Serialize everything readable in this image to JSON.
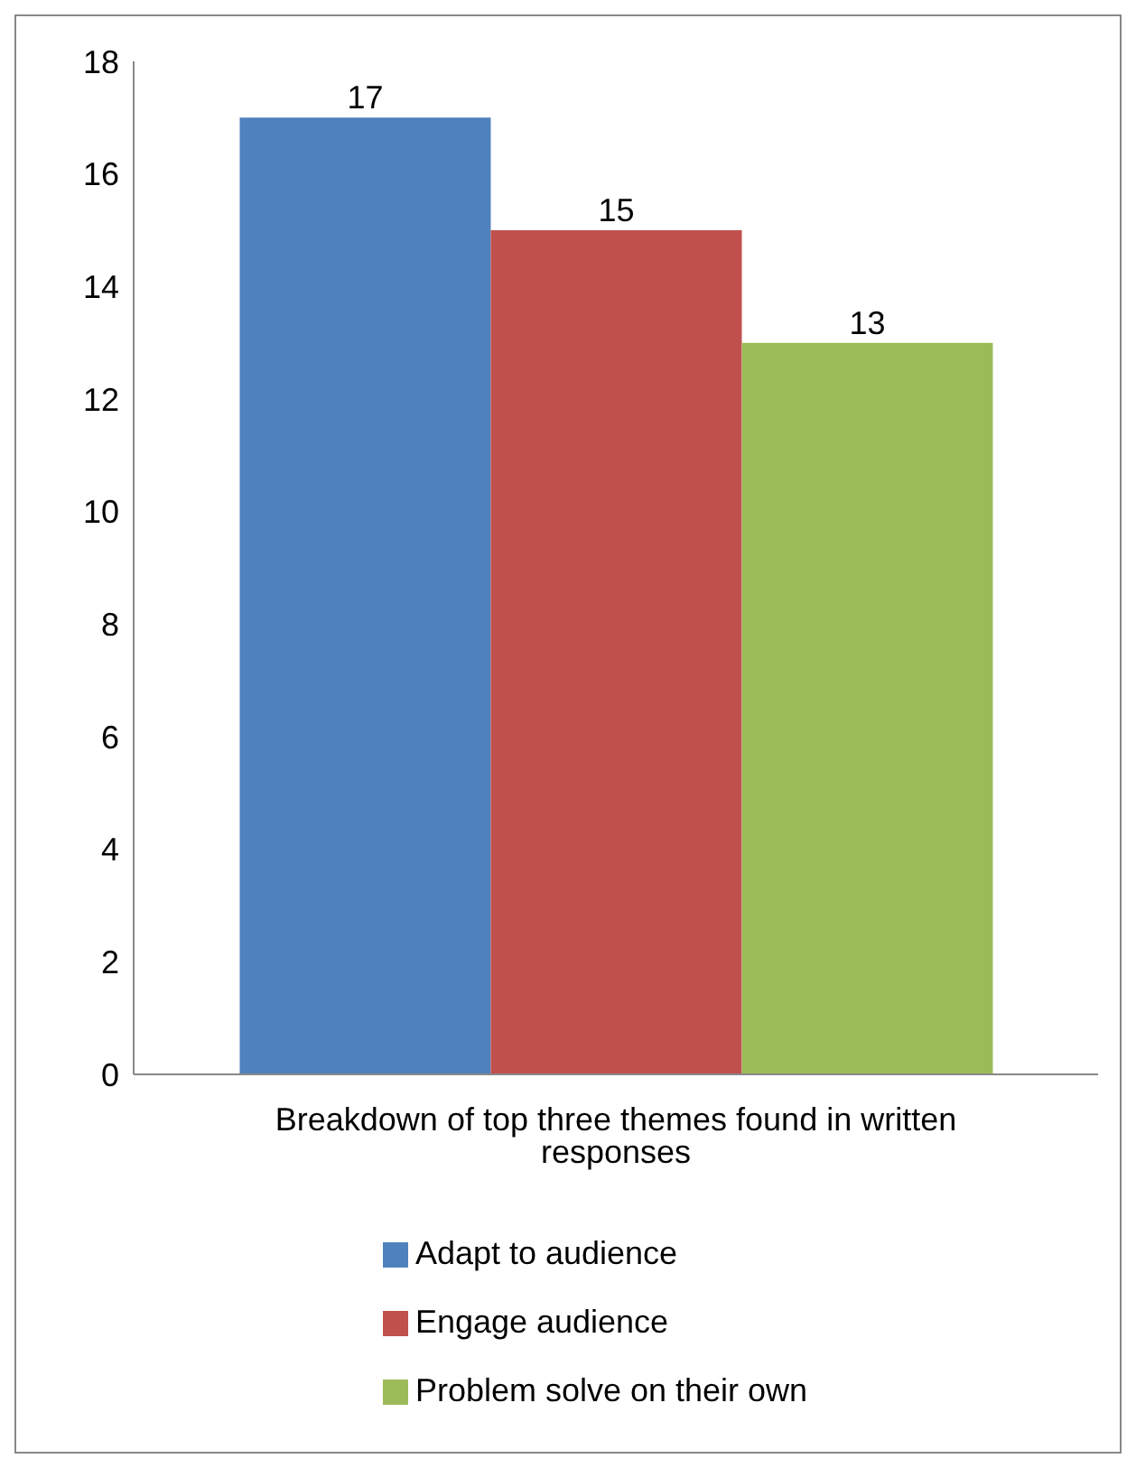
{
  "chart_data": {
    "type": "bar",
    "categories": [
      "Breakdown of top three themes found in written responses"
    ],
    "series": [
      {
        "name": "Adapt to audience",
        "color": "#4f81bd",
        "values": [
          17
        ]
      },
      {
        "name": "Engage audience",
        "color": "#c0504d",
        "values": [
          15
        ]
      },
      {
        "name": "Problem solve on their own",
        "color": "#9bbb59",
        "values": [
          13
        ]
      }
    ],
    "ylim": [
      0,
      18
    ],
    "yticks": [
      0,
      2,
      4,
      6,
      8,
      10,
      12,
      14,
      16,
      18
    ],
    "grid": false,
    "legend": "bottom",
    "data_labels": true
  }
}
